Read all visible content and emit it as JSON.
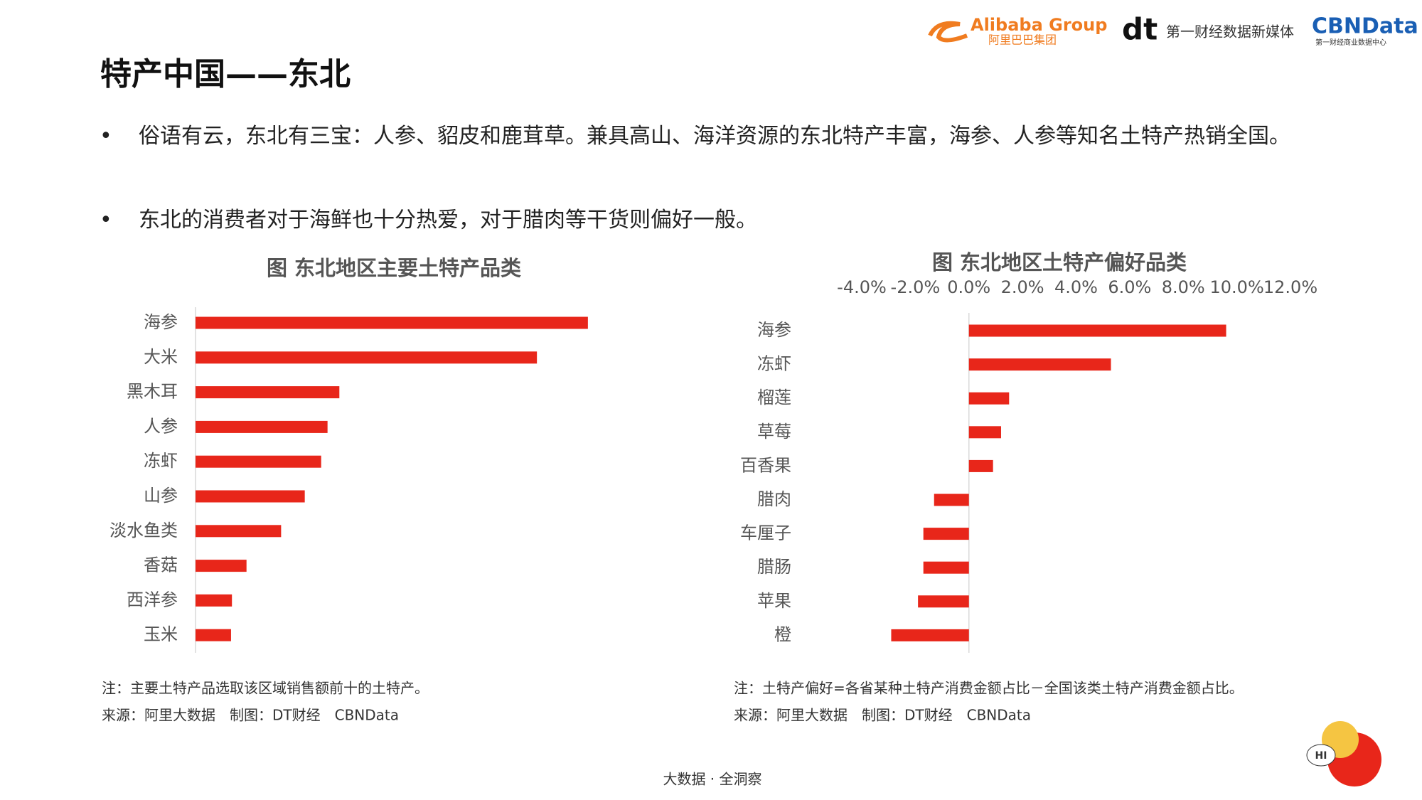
{
  "header": {
    "title": "特产中国——东北",
    "logos": {
      "alibaba": "Alibaba Group",
      "alibaba_cn": "阿里巴巴集团",
      "dt": "dt",
      "dt_name": "第一财经数据新媒体",
      "cbn": "CBNData",
      "cbn_sub": "第一财经商业数据中心"
    }
  },
  "bullets": [
    "俗语有云，东北有三宝：人参、貂皮和鹿茸草。兼具高山、海洋资源的东北特产丰富，海参、人参等知名土特产热销全国。",
    "东北的消费者对于海鲜也十分热爱，对于腊肉等干货则偏好一般。"
  ],
  "chart_data": [
    {
      "type": "bar",
      "title": "图 东北地区主要土特产品类",
      "categories": [
        "海参",
        "大米",
        "黑木耳",
        "人参",
        "冻虾",
        "山参",
        "淡水鱼类",
        "香菇",
        "西洋参",
        "玉米"
      ],
      "values": [
        431,
        375,
        158,
        145,
        138,
        120,
        94,
        56,
        40,
        39
      ],
      "color": "#e8261a",
      "xlim": [
        0,
        460
      ],
      "note": "注：主要土特产品选取该区域销售额前十的土特产。",
      "source": "来源：阿里大数据　制图：DT财经　CBNData"
    },
    {
      "type": "bar",
      "title": "图 东北地区土特产偏好品类",
      "categories": [
        "海参",
        "冻虾",
        "榴莲",
        "草莓",
        "百香果",
        "腊肉",
        "车厘子",
        "腊肠",
        "苹果",
        "橙"
      ],
      "values": [
        9.6,
        5.3,
        1.5,
        1.2,
        0.9,
        -1.3,
        -1.7,
        -1.7,
        -1.9,
        -2.9
      ],
      "color": "#e8261a",
      "xlim": [
        -4,
        12
      ],
      "xticks": [
        {
          "value": -4,
          "label": "-4.0%"
        },
        {
          "value": -2,
          "label": "-2.0%"
        },
        {
          "value": 0,
          "label": "0.0%"
        },
        {
          "value": 2,
          "label": "2.0%"
        },
        {
          "value": 4,
          "label": "4.0%"
        },
        {
          "value": 6,
          "label": "6.0%"
        },
        {
          "value": 8,
          "label": "8.0%"
        },
        {
          "value": 10,
          "label": "10.0%"
        },
        {
          "value": 12,
          "label": "12.0%"
        }
      ],
      "note": "注：土特产偏好=各省某种土特产消费金额占比－全国该类土特产消费金额占比。",
      "source": "来源：阿里大数据　制图：DT财经　CBNData"
    }
  ],
  "footer": "大数据 · 全洞察",
  "mascot": "HI"
}
